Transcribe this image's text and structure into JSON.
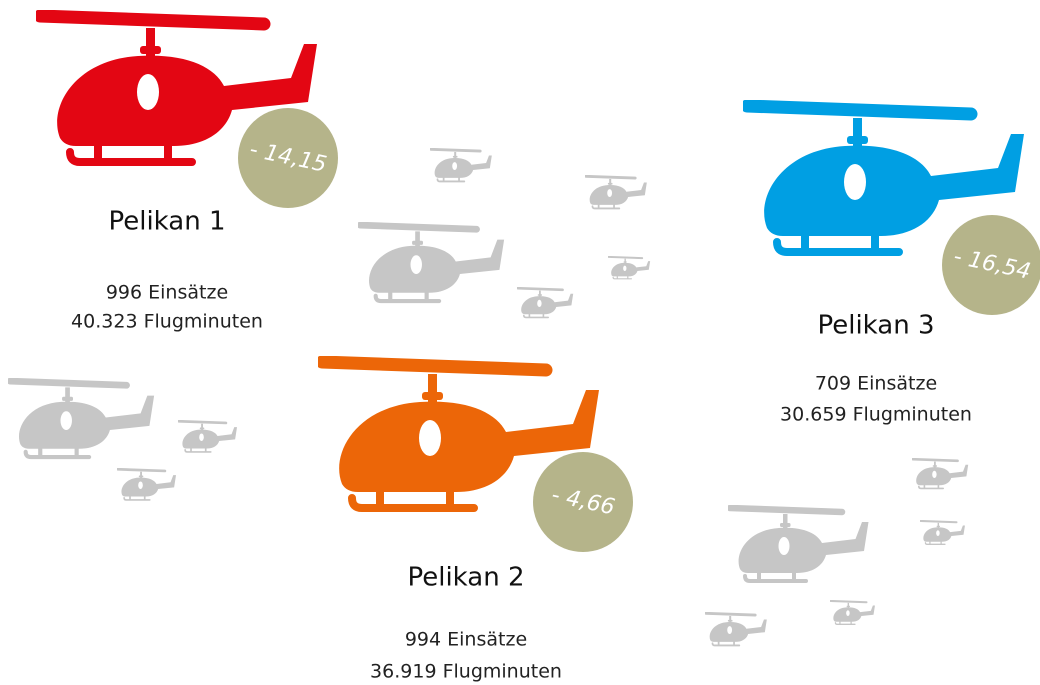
{
  "helicopters": [
    {
      "name": "Pelikan 1",
      "missions": "996 Einsätze",
      "minutes": "40.323 Flugminuten",
      "badge": "- 14,15",
      "color": "#e30613"
    },
    {
      "name": "Pelikan 2",
      "missions": "994 Einsätze",
      "minutes": "36.919 Flugminuten",
      "badge": "- 4,66",
      "color": "#ec6608"
    },
    {
      "name": "Pelikan 3",
      "missions": "709 Einsätze",
      "minutes": "30.659 Flugminuten",
      "badge": "- 16,54",
      "color": "#009fe3"
    }
  ],
  "badge_color": "#b5b48a",
  "decoration_color": "#c6c6c6"
}
